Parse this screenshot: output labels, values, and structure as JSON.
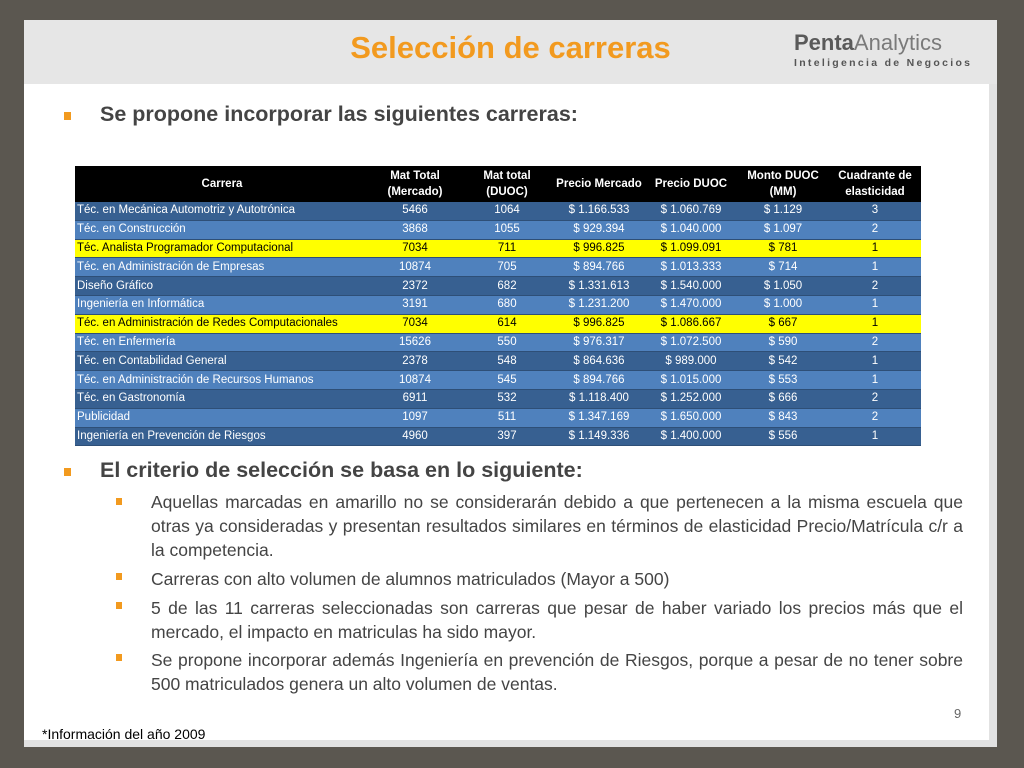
{
  "title": "Selección de carreras",
  "logo": {
    "brand_bold": "Penta",
    "brand_light": "Analytics",
    "tagline": "Inteligencia de Negocios"
  },
  "bullet1": "Se propone incorporar las siguientes carreras:",
  "table": {
    "headers": [
      "Carrera",
      "Mat Total (Mercado)",
      "Mat total (DUOC)",
      "Precio Mercado",
      "Precio DUOC",
      "Monto DUOC (MM)",
      "Cuadrante de elasticidad"
    ],
    "rows": [
      {
        "style": "dark",
        "cells": [
          "Téc. en Mecánica Automotriz y Autotrónica",
          "5466",
          "1064",
          "$ 1.166.533",
          "$ 1.060.769",
          "$ 1.129",
          "3"
        ]
      },
      {
        "style": "light",
        "cells": [
          "Téc. en Construcción",
          "3868",
          "1055",
          "$ 929.394",
          "$ 1.040.000",
          "$ 1.097",
          "2"
        ]
      },
      {
        "style": "hl",
        "cells": [
          "Téc. Analista Programador Computacional",
          "7034",
          "711",
          "$ 996.825",
          "$ 1.099.091",
          "$ 781",
          "1"
        ]
      },
      {
        "style": "light",
        "cells": [
          "Téc. en Administración de Empresas",
          "10874",
          "705",
          "$ 894.766",
          "$ 1.013.333",
          "$ 714",
          "1"
        ]
      },
      {
        "style": "dark",
        "cells": [
          "Diseño Gráfico",
          "2372",
          "682",
          "$ 1.331.613",
          "$ 1.540.000",
          "$ 1.050",
          "2"
        ]
      },
      {
        "style": "light",
        "cells": [
          "Ingeniería en Informática",
          "3191",
          "680",
          "$ 1.231.200",
          "$ 1.470.000",
          "$ 1.000",
          "1"
        ]
      },
      {
        "style": "hl",
        "cells": [
          "Téc. en Administración de Redes Computacionales",
          "7034",
          "614",
          "$ 996.825",
          "$ 1.086.667",
          "$ 667",
          "1"
        ]
      },
      {
        "style": "light",
        "cells": [
          "Téc. en Enfermería",
          "15626",
          "550",
          "$ 976.317",
          "$ 1.072.500",
          "$ 590",
          "2"
        ]
      },
      {
        "style": "dark",
        "cells": [
          "Téc. en Contabilidad General",
          "2378",
          "548",
          "$ 864.636",
          "$ 989.000",
          "$ 542",
          "1"
        ]
      },
      {
        "style": "light",
        "cells": [
          "Téc. en Administración de Recursos Humanos",
          "10874",
          "545",
          "$ 894.766",
          "$ 1.015.000",
          "$ 553",
          "1"
        ]
      },
      {
        "style": "dark",
        "cells": [
          "Téc. en Gastronomía",
          "6911",
          "532",
          "$ 1.118.400",
          "$ 1.252.000",
          "$ 666",
          "2"
        ]
      },
      {
        "style": "light",
        "cells": [
          "Publicidad",
          "1097",
          "511",
          "$ 1.347.169",
          "$ 1.650.000",
          "$ 843",
          "2"
        ]
      },
      {
        "style": "dark",
        "cells": [
          "Ingeniería en Prevención de Riesgos",
          "4960",
          "397",
          "$ 1.149.336",
          "$ 1.400.000",
          "$ 556",
          "1"
        ]
      }
    ]
  },
  "bullet2": "El criterio de selección se basa en lo siguiente:",
  "sub_bullets": [
    "Aquellas marcadas en amarillo no se considerarán debido a que pertenecen a la misma escuela que otras ya consideradas y presentan resultados similares en términos de elasticidad Precio/Matrícula c/r a la competencia.",
    "Carreras con alto volumen de alumnos matriculados (Mayor a 500)",
    "5 de las 11 carreras seleccionadas son carreras que pesar de haber variado los precios más que el mercado, el impacto en matriculas ha sido mayor.",
    "Se propone incorporar además Ingeniería en prevención de Riesgos, porque a pesar de no tener sobre 500 matriculados genera un alto volumen de ventas."
  ],
  "page_number": "9",
  "footnote": "*Información del año 2009",
  "colors": {
    "accent": "#f29a1f",
    "row_dark": "#376091",
    "row_light": "#4f81bd",
    "highlight": "#ffff00"
  }
}
